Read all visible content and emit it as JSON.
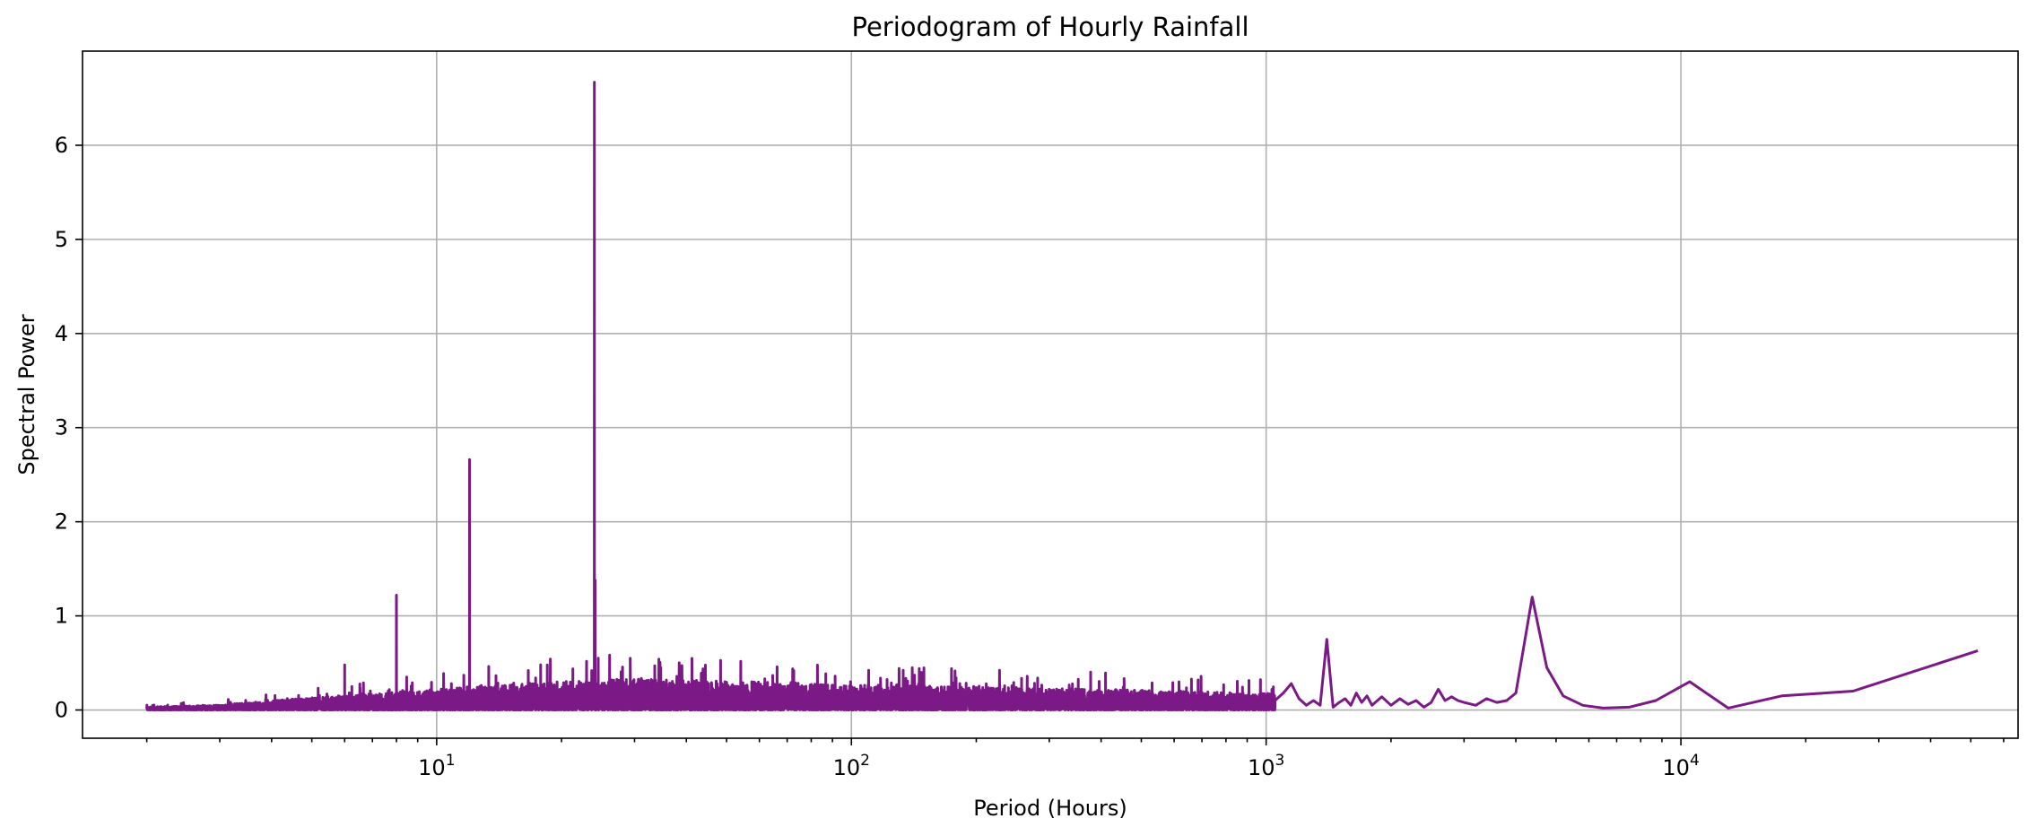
{
  "chart_data": {
    "type": "line",
    "title": "Periodogram of Hourly Rainfall",
    "xlabel": "Period (Hours)",
    "ylabel": "Spectral Power",
    "xscale": "log",
    "xlim": [
      1.4,
      65000
    ],
    "ylim": [
      -0.3,
      7.0
    ],
    "grid": true,
    "line_color": "#7b1a86",
    "x_ticks": [
      {
        "value": 10,
        "base": "10",
        "exp": "1"
      },
      {
        "value": 100,
        "base": "10",
        "exp": "2"
      },
      {
        "value": 1000,
        "base": "10",
        "exp": "3"
      },
      {
        "value": 10000,
        "base": "10",
        "exp": "4"
      }
    ],
    "y_ticks": [
      0,
      1,
      2,
      3,
      4,
      5,
      6
    ],
    "y_tick_labels": [
      "0",
      "1",
      "2",
      "3",
      "4",
      "5",
      "6"
    ],
    "peaks": [
      {
        "x": 6,
        "y": 0.48
      },
      {
        "x": 8,
        "y": 1.22
      },
      {
        "x": 12,
        "y": 2.66
      },
      {
        "x": 24,
        "y": 6.67
      },
      {
        "x": 1400,
        "y": 0.75
      },
      {
        "x": 4380,
        "y": 1.2
      }
    ],
    "noise_envelope": [
      [
        2,
        0.03
      ],
      [
        3,
        0.05
      ],
      [
        5,
        0.12
      ],
      [
        10,
        0.2
      ],
      [
        20,
        0.28
      ],
      [
        30,
        0.3
      ],
      [
        50,
        0.28
      ],
      [
        100,
        0.25
      ],
      [
        200,
        0.22
      ],
      [
        400,
        0.2
      ],
      [
        700,
        0.18
      ],
      [
        1000,
        0.16
      ]
    ],
    "series": [
      {
        "x": [
          1050,
          1100,
          1150,
          1200,
          1250,
          1300,
          1350,
          1400,
          1450,
          1500,
          1550,
          1600,
          1650,
          1700,
          1750,
          1800,
          1900,
          2000,
          2100,
          2200,
          2300,
          2400,
          2500,
          2600,
          2700,
          2800,
          2900,
          3000,
          3200,
          3400,
          3600,
          3800,
          4000,
          4380,
          4750,
          5200,
          5800,
          6500,
          7500,
          8700,
          10500,
          13000,
          17500,
          26000,
          52000
        ],
        "y": [
          0.1,
          0.18,
          0.28,
          0.12,
          0.05,
          0.1,
          0.05,
          0.75,
          0.03,
          0.08,
          0.12,
          0.05,
          0.18,
          0.08,
          0.15,
          0.05,
          0.14,
          0.05,
          0.12,
          0.06,
          0.1,
          0.03,
          0.08,
          0.22,
          0.1,
          0.14,
          0.1,
          0.08,
          0.05,
          0.12,
          0.08,
          0.1,
          0.18,
          1.2,
          0.45,
          0.15,
          0.05,
          0.02,
          0.03,
          0.1,
          0.3,
          0.02,
          0.15,
          0.2,
          0.63
        ]
      }
    ]
  }
}
